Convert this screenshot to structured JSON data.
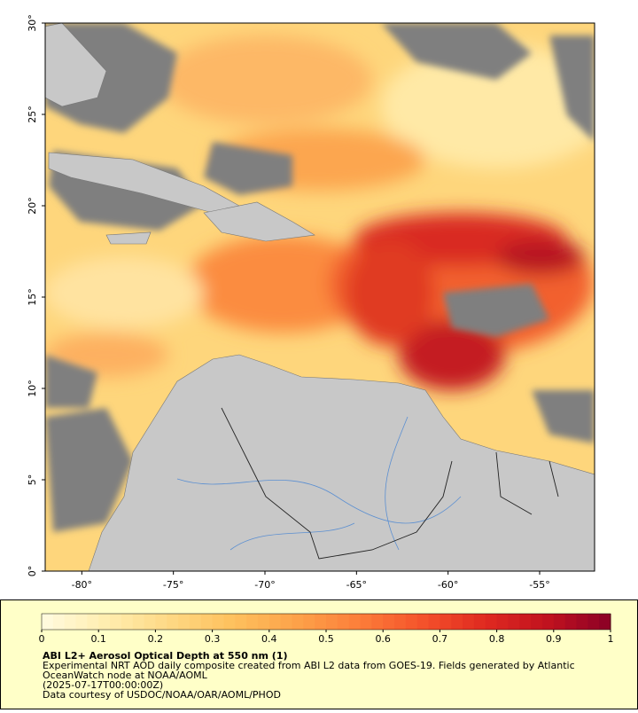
{
  "map": {
    "lon_range": [
      -82,
      -52
    ],
    "lat_range": [
      0,
      30
    ],
    "lon_ticks": [
      {
        "value": -80,
        "label": "-80°"
      },
      {
        "value": -75,
        "label": "-75°"
      },
      {
        "value": -70,
        "label": "-70°"
      },
      {
        "value": -65,
        "label": "-65°"
      },
      {
        "value": -60,
        "label": "-60°"
      },
      {
        "value": -55,
        "label": "-55°"
      }
    ],
    "lat_ticks": [
      {
        "value": 0,
        "label": "0°"
      },
      {
        "value": 5,
        "label": "5°"
      },
      {
        "value": 10,
        "label": "10°"
      },
      {
        "value": 15,
        "label": "15°"
      },
      {
        "value": 20,
        "label": "20°"
      },
      {
        "value": 25,
        "label": "25°"
      },
      {
        "value": 30,
        "label": "30°"
      }
    ]
  },
  "colorbar": {
    "range": [
      0,
      1
    ],
    "ticks": [
      0,
      0.1,
      0.2,
      0.3,
      0.4,
      0.5,
      0.6,
      0.7,
      0.8,
      0.9,
      1
    ],
    "colors": [
      "#fffbe0",
      "#ffeeb0",
      "#fed985",
      "#fec15e",
      "#fda34a",
      "#fc7f3a",
      "#f5532b",
      "#e02a20",
      "#c1121f",
      "#8a0026"
    ]
  },
  "caption": {
    "title": "ABI L2+ Aerosol Optical Depth at 550 nm (1)",
    "lines": [
      "Experimental NRT AOD daily composite created from ABI L2 data from GOES-19. Fields generated by Atlantic",
      "OceanWatch node at NOAA/AOML",
      "(2025-07-17T00:00:00Z)",
      "Data courtesy of USDOC/NOAA/OAR/AOML/PHOD"
    ]
  }
}
